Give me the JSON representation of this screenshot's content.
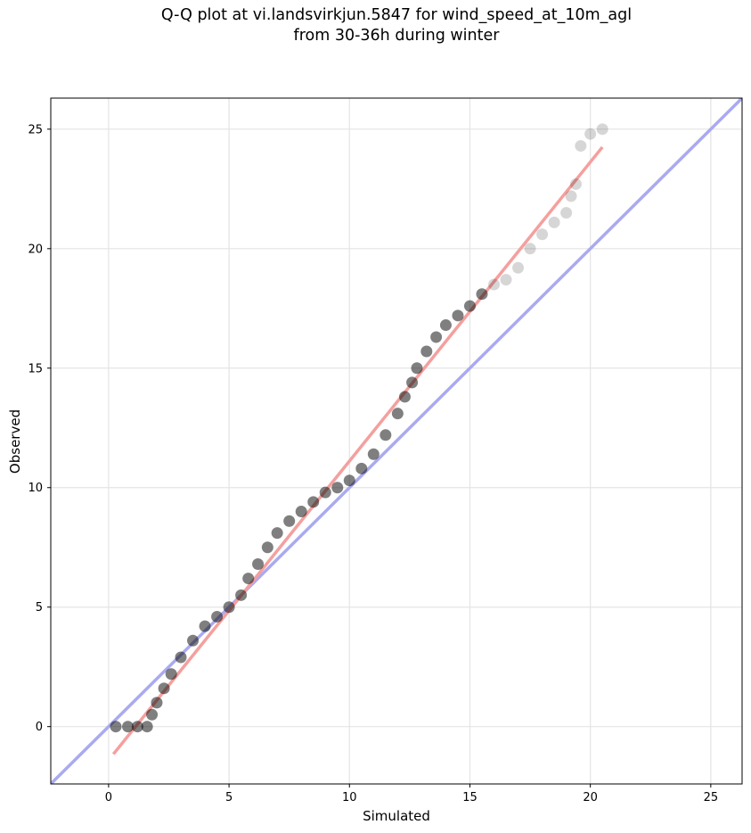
{
  "chart_data": {
    "type": "scatter",
    "title": "Q-Q plot at vi.landsvirkjun.5847 for wind_speed_at_10m_agl",
    "subtitle": "from 30-36h during winter",
    "xlabel": "Simulated",
    "ylabel": "Observed",
    "xlim": [
      -2.4,
      26.3
    ],
    "ylim": [
      -2.4,
      26.3
    ],
    "xticks": [
      0,
      5,
      10,
      15,
      20,
      25
    ],
    "yticks": [
      0,
      5,
      10,
      15,
      20,
      25
    ],
    "xtick_labels": [
      "0",
      "5",
      "10",
      "15",
      "20",
      "25"
    ],
    "ytick_labels": [
      "0",
      "5",
      "10",
      "15",
      "20",
      "25"
    ],
    "grid": true,
    "series": [
      {
        "kind": "quantile-points",
        "color": "#000000",
        "x": [
          0.3,
          0.8,
          1.2,
          1.6,
          1.8,
          2.0,
          2.3,
          2.6,
          3.0,
          3.5,
          4.0,
          4.5,
          5.0,
          5.5,
          5.8,
          6.2,
          6.6,
          7.0,
          7.5,
          8.0,
          8.5,
          9.0,
          9.5,
          10.0,
          10.5,
          11.0,
          11.5,
          12.0,
          12.3,
          12.6,
          12.8,
          13.2,
          13.6,
          14.0,
          14.5,
          15.0,
          15.5,
          16.0,
          16.5,
          17.0,
          17.5,
          18.0,
          18.5,
          19.0,
          19.2,
          19.4,
          19.6,
          20.0,
          20.5
        ],
        "y": [
          0.0,
          0.0,
          0.0,
          0.0,
          0.5,
          1.0,
          1.6,
          2.2,
          2.9,
          3.6,
          4.2,
          4.6,
          5.0,
          5.5,
          6.2,
          6.8,
          7.5,
          8.1,
          8.6,
          9.0,
          9.4,
          9.8,
          10.0,
          10.3,
          10.8,
          11.4,
          12.2,
          13.1,
          13.8,
          14.4,
          15.0,
          15.7,
          16.3,
          16.8,
          17.2,
          17.6,
          18.1,
          18.5,
          18.7,
          19.2,
          20.0,
          20.6,
          21.1,
          21.5,
          22.2,
          22.7,
          24.3,
          24.8,
          25.0
        ]
      },
      {
        "kind": "fit-line",
        "color": "#f4a09e",
        "x": [
          0.2,
          20.5
        ],
        "y": [
          -1.15,
          24.25
        ]
      },
      {
        "kind": "identity-line",
        "color": "#aaaaf0",
        "x": [
          -2.4,
          26.3
        ],
        "y": [
          -2.4,
          26.3
        ]
      }
    ]
  }
}
